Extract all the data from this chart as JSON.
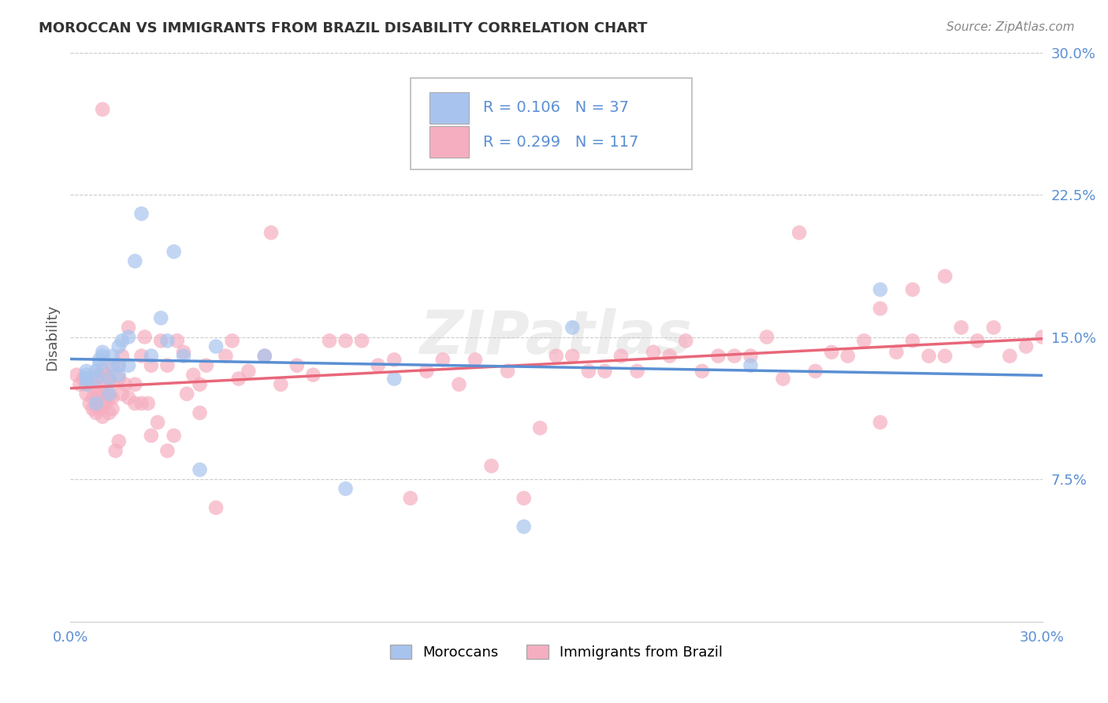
{
  "title": "MOROCCAN VS IMMIGRANTS FROM BRAZIL DISABILITY CORRELATION CHART",
  "source": "Source: ZipAtlas.com",
  "ylabel": "Disability",
  "moroccan_R": 0.106,
  "moroccan_N": 37,
  "brazil_R": 0.299,
  "brazil_N": 117,
  "moroccan_color": "#a8c4ee",
  "brazil_color": "#f5aec0",
  "moroccan_line_color": "#5b8fd4",
  "brazil_line_color": "#e8687a",
  "blue_text_color": "#5b8fd4",
  "watermark": "ZIPatlas",
  "xlim": [
    0.0,
    0.3
  ],
  "ylim": [
    0.0,
    0.3
  ],
  "yticks": [
    0.0,
    0.075,
    0.15,
    0.225,
    0.3
  ],
  "ytick_labels": [
    "",
    "7.5%",
    "15.0%",
    "22.5%",
    "30.0%"
  ],
  "xtick_labels": [
    "0.0%",
    "",
    "",
    "",
    "",
    "",
    "30.0%"
  ],
  "moroccan_x": [
    0.005,
    0.005,
    0.005,
    0.005,
    0.008,
    0.008,
    0.008,
    0.009,
    0.009,
    0.01,
    0.01,
    0.012,
    0.012,
    0.013,
    0.013,
    0.015,
    0.015,
    0.015,
    0.016,
    0.018,
    0.018,
    0.02,
    0.022,
    0.025,
    0.028,
    0.03,
    0.032,
    0.035,
    0.04,
    0.045,
    0.06,
    0.085,
    0.1,
    0.14,
    0.155,
    0.21,
    0.25
  ],
  "moroccan_y": [
    0.125,
    0.128,
    0.13,
    0.132,
    0.115,
    0.128,
    0.132,
    0.135,
    0.138,
    0.14,
    0.142,
    0.12,
    0.128,
    0.135,
    0.14,
    0.13,
    0.135,
    0.145,
    0.148,
    0.135,
    0.15,
    0.19,
    0.215,
    0.14,
    0.16,
    0.148,
    0.195,
    0.14,
    0.08,
    0.145,
    0.14,
    0.07,
    0.128,
    0.05,
    0.155,
    0.135,
    0.175
  ],
  "brazil_x": [
    0.002,
    0.003,
    0.004,
    0.005,
    0.006,
    0.006,
    0.007,
    0.007,
    0.008,
    0.008,
    0.008,
    0.009,
    0.009,
    0.009,
    0.01,
    0.01,
    0.01,
    0.01,
    0.01,
    0.01,
    0.011,
    0.011,
    0.011,
    0.012,
    0.012,
    0.012,
    0.013,
    0.013,
    0.013,
    0.013,
    0.014,
    0.015,
    0.015,
    0.015,
    0.016,
    0.016,
    0.017,
    0.018,
    0.018,
    0.02,
    0.02,
    0.022,
    0.022,
    0.023,
    0.024,
    0.025,
    0.025,
    0.027,
    0.028,
    0.03,
    0.03,
    0.032,
    0.033,
    0.035,
    0.036,
    0.038,
    0.04,
    0.04,
    0.042,
    0.045,
    0.048,
    0.05,
    0.052,
    0.055,
    0.06,
    0.062,
    0.065,
    0.07,
    0.075,
    0.08,
    0.085,
    0.09,
    0.095,
    0.1,
    0.105,
    0.11,
    0.115,
    0.12,
    0.125,
    0.13,
    0.135,
    0.14,
    0.145,
    0.15,
    0.155,
    0.16,
    0.165,
    0.17,
    0.175,
    0.18,
    0.185,
    0.19,
    0.195,
    0.2,
    0.205,
    0.21,
    0.215,
    0.22,
    0.225,
    0.23,
    0.235,
    0.24,
    0.245,
    0.25,
    0.255,
    0.26,
    0.265,
    0.27,
    0.275,
    0.28,
    0.285,
    0.29,
    0.295,
    0.3,
    0.25,
    0.26,
    0.27
  ],
  "brazil_y": [
    0.13,
    0.125,
    0.128,
    0.12,
    0.115,
    0.125,
    0.112,
    0.118,
    0.11,
    0.12,
    0.128,
    0.112,
    0.122,
    0.13,
    0.108,
    0.115,
    0.12,
    0.128,
    0.132,
    0.27,
    0.115,
    0.12,
    0.13,
    0.11,
    0.118,
    0.128,
    0.112,
    0.118,
    0.125,
    0.135,
    0.09,
    0.095,
    0.128,
    0.135,
    0.12,
    0.14,
    0.125,
    0.118,
    0.155,
    0.115,
    0.125,
    0.115,
    0.14,
    0.15,
    0.115,
    0.098,
    0.135,
    0.105,
    0.148,
    0.09,
    0.135,
    0.098,
    0.148,
    0.142,
    0.12,
    0.13,
    0.11,
    0.125,
    0.135,
    0.06,
    0.14,
    0.148,
    0.128,
    0.132,
    0.14,
    0.205,
    0.125,
    0.135,
    0.13,
    0.148,
    0.148,
    0.148,
    0.135,
    0.138,
    0.065,
    0.132,
    0.138,
    0.125,
    0.138,
    0.082,
    0.132,
    0.065,
    0.102,
    0.14,
    0.14,
    0.132,
    0.132,
    0.14,
    0.132,
    0.142,
    0.14,
    0.148,
    0.132,
    0.14,
    0.14,
    0.14,
    0.15,
    0.128,
    0.205,
    0.132,
    0.142,
    0.14,
    0.148,
    0.105,
    0.142,
    0.148,
    0.14,
    0.14,
    0.155,
    0.148,
    0.155,
    0.14,
    0.145,
    0.15,
    0.165,
    0.175,
    0.182
  ]
}
